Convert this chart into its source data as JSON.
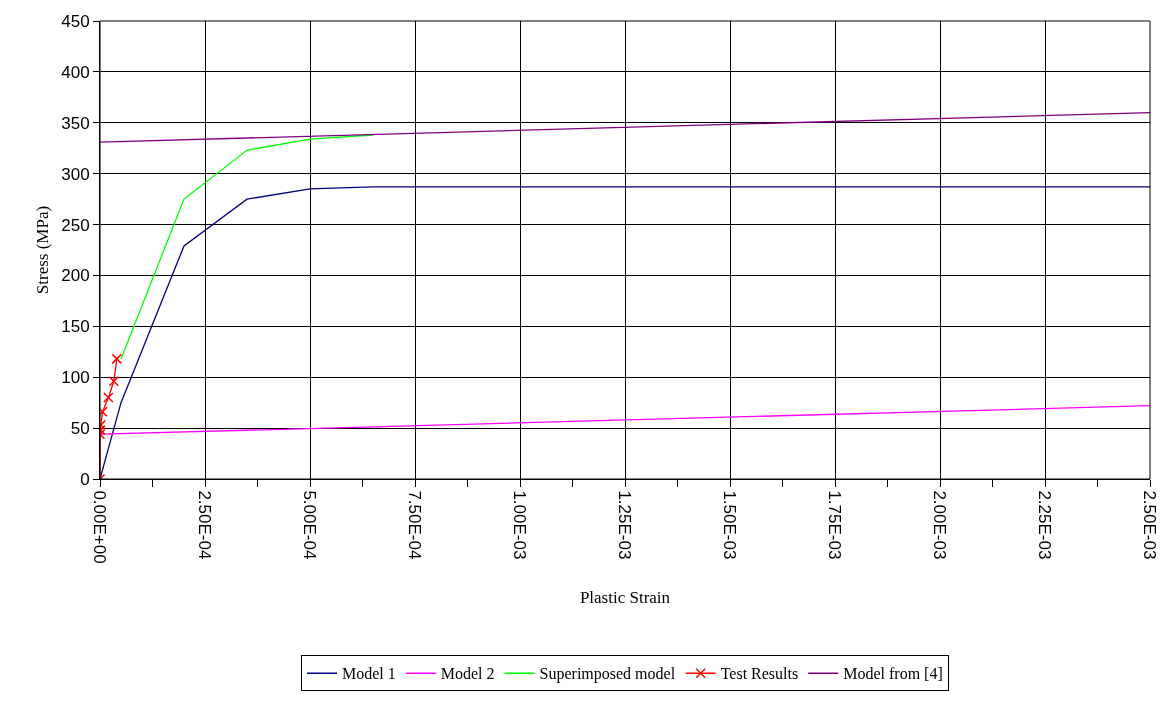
{
  "chart_data": {
    "type": "line",
    "xlabel": "Plastic Strain",
    "ylabel": "Stress (MPa)",
    "xlim": [
      0,
      0.0025
    ],
    "ylim": [
      0,
      450
    ],
    "xticks": [
      {
        "value": 0,
        "label": "0.00E+00"
      },
      {
        "value": 0.00025,
        "label": "2.50E-04"
      },
      {
        "value": 0.0005,
        "label": "5.00E-04"
      },
      {
        "value": 0.00075,
        "label": "7.50E-04"
      },
      {
        "value": 0.001,
        "label": "1.00E-03"
      },
      {
        "value": 0.00125,
        "label": "1.25E-03"
      },
      {
        "value": 0.0015,
        "label": "1.50E-03"
      },
      {
        "value": 0.00175,
        "label": "1.75E-03"
      },
      {
        "value": 0.002,
        "label": "2.00E-03"
      },
      {
        "value": 0.00225,
        "label": "2.25E-03"
      },
      {
        "value": 0.0025,
        "label": "2.50E-03"
      }
    ],
    "yticks": [
      0,
      50,
      100,
      150,
      200,
      250,
      300,
      350,
      400,
      450
    ],
    "grid": true,
    "legend": "bottom",
    "marker": "none",
    "line_style": "solid",
    "series": [
      {
        "name": "Model 1",
        "color": "#000080",
        "x": [
          0,
          5e-05,
          0.0002,
          0.00035,
          0.0005,
          0.00065,
          0.0025
        ],
        "values": [
          0,
          75,
          229,
          275,
          285,
          287,
          287
        ]
      },
      {
        "name": "Model 2",
        "color": "#ff00ff",
        "x": [
          0,
          0.0025
        ],
        "values": [
          44,
          72
        ]
      },
      {
        "name": "Superimposed model",
        "color": "#00ff00",
        "x": [
          5e-05,
          0.0002,
          0.00035,
          0.0005,
          0.00065
        ],
        "values": [
          118,
          275,
          323,
          334,
          338
        ]
      },
      {
        "name": "Test Results",
        "color": "#ff0000",
        "marker": "cross",
        "x": [
          0,
          0,
          1e-06,
          2e-06,
          6e-06,
          2e-05,
          3.3e-05,
          4e-05
        ],
        "values": [
          0,
          44,
          48,
          53,
          66,
          80,
          96,
          118
        ]
      },
      {
        "name": "Model from [4]",
        "color": "#800080",
        "x": [
          0,
          0.0025
        ],
        "values": [
          331,
          360
        ]
      }
    ]
  }
}
